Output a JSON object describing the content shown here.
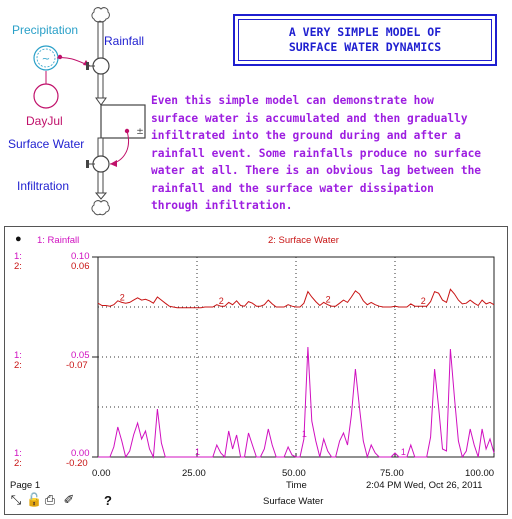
{
  "title": {
    "line1": "A VERY SIMPLE MODEL OF",
    "line2": "SURFACE WATER DYNAMICS"
  },
  "description": [
    "Even this simple model can demonstrate how",
    "surface water is accumulated and then gradually",
    "infiltrated into the ground during and after a",
    "rainfall event. Some rainfalls produce no surface",
    "water at all. There is an obvious lag between the",
    "rainfall and the surface water dissipation",
    "through infiltration."
  ],
  "diagram": {
    "precipitation": "Precipitation",
    "rainfall": "Rainfall",
    "dayjul": "DayJul",
    "surface_water": "Surface Water",
    "infiltration": "Infiltration",
    "precipitation_symbol": "~",
    "stock_symbol": "±"
  },
  "graph": {
    "legend": {
      "series1": "1: Rainfall",
      "series2": "2: Surface Water"
    },
    "axis_left": {
      "top": {
        "s1": "0.10",
        "s2": "0.06",
        "p1": "1:",
        "p2": "2:"
      },
      "mid": {
        "s1": "0.05",
        "s2": "-0.07",
        "p1": "1:",
        "p2": "2:"
      },
      "bot": {
        "s1": "0.00",
        "s2": "-0.20",
        "p1": "1:",
        "p2": "2:"
      }
    },
    "x_ticks": [
      "0.00",
      "25.00",
      "50.00",
      "75.00",
      "100.00"
    ],
    "x_label": "Time",
    "page": "Page 1",
    "timestamp": "2:04 PM   Wed, Oct 26, 2011",
    "footer_title": "Surface Water",
    "help": "?",
    "colors": {
      "rainfall": "#d010c0",
      "surface_water": "#c81414",
      "title": "#1f1fd0",
      "text": "#9d1ee0"
    }
  },
  "chart_data": {
    "type": "line",
    "x_label": "Time",
    "xlim": [
      0,
      100
    ],
    "series": [
      {
        "name": "1: Rainfall",
        "ylim": [
          0,
          0.1
        ],
        "x": [
          0,
          1,
          2,
          3,
          4,
          5,
          6,
          7,
          8,
          9,
          10,
          11,
          12,
          13,
          14,
          15,
          16,
          17,
          18,
          19,
          20,
          21,
          22,
          23,
          24,
          25,
          26,
          27,
          28,
          29,
          30,
          31,
          32,
          33,
          34,
          35,
          36,
          37,
          38,
          39,
          40,
          41,
          42,
          43,
          44,
          45,
          46,
          47,
          48,
          49,
          50,
          51,
          52,
          53,
          54,
          55,
          56,
          57,
          58,
          59,
          60,
          61,
          62,
          63,
          64,
          65,
          66,
          67,
          68,
          69,
          70,
          71,
          72,
          73,
          74,
          75,
          76,
          77,
          78,
          79,
          80,
          81,
          82,
          83,
          84,
          85,
          86,
          87,
          88,
          89,
          90,
          91,
          92,
          93,
          94,
          95,
          96,
          97,
          98,
          99,
          100
        ],
        "values": [
          0,
          0,
          0,
          0,
          0.005,
          0.015,
          0.008,
          0,
          0.003,
          0.011,
          0.017,
          0.009,
          0.013,
          0.004,
          0,
          0.024,
          0.007,
          0,
          0,
          0,
          0,
          0,
          0,
          0,
          0,
          0,
          0,
          0,
          0,
          0,
          0.006,
          0.002,
          0,
          0.013,
          0.004,
          0.011,
          0,
          0,
          0.012,
          0.006,
          0,
          0,
          0.004,
          0.014,
          0.006,
          0,
          0,
          0,
          0.005,
          0.001,
          0,
          0,
          0.009,
          0.055,
          0.018,
          0.008,
          0,
          0.009,
          0.003,
          0,
          0,
          0.008,
          0.012,
          0.006,
          0.021,
          0.044,
          0.025,
          0.008,
          0,
          0.006,
          0.002,
          0,
          0,
          0,
          0,
          0.002,
          0,
          0,
          0,
          0.006,
          0,
          0,
          0,
          0,
          0.01,
          0.044,
          0.025,
          0.004,
          0.003,
          0.054,
          0.03,
          0.008,
          0,
          0.003,
          0.014,
          0.006,
          0,
          0.014,
          0.004,
          0.009,
          0.002
        ]
      },
      {
        "name": "2: Surface Water",
        "ylim": [
          -0.2,
          0.06
        ],
        "x": [
          0,
          1,
          2,
          3,
          4,
          5,
          6,
          7,
          8,
          9,
          10,
          11,
          12,
          13,
          14,
          15,
          16,
          17,
          18,
          19,
          20,
          21,
          22,
          23,
          24,
          25,
          26,
          27,
          28,
          29,
          30,
          31,
          32,
          33,
          34,
          35,
          36,
          37,
          38,
          39,
          40,
          41,
          42,
          43,
          44,
          45,
          46,
          47,
          48,
          49,
          50,
          51,
          52,
          53,
          54,
          55,
          56,
          57,
          58,
          59,
          60,
          61,
          62,
          63,
          64,
          65,
          66,
          67,
          68,
          69,
          70,
          71,
          72,
          73,
          74,
          75,
          76,
          77,
          78,
          79,
          80,
          81,
          82,
          83,
          84,
          85,
          86,
          87,
          88,
          89,
          90,
          91,
          92,
          93,
          94,
          95,
          96,
          97,
          98,
          99,
          100
        ],
        "values": [
          0,
          -0.003,
          -0.003,
          -0.004,
          -0.002,
          0.003,
          0.001,
          0,
          0.001,
          0.004,
          0.007,
          0.004,
          0.005,
          0.003,
          0,
          0.008,
          0.004,
          0,
          -0.004,
          -0.005,
          -0.006,
          -0.006,
          -0.006,
          -0.006,
          -0.006,
          -0.006,
          -0.006,
          -0.005,
          -0.005,
          -0.005,
          -0.002,
          -0.004,
          -0.004,
          0.001,
          -0.002,
          0.003,
          -0.003,
          -0.004,
          0.002,
          0,
          -0.004,
          -0.004,
          -0.002,
          0.004,
          -0.001,
          -0.005,
          -0.005,
          -0.005,
          -0.002,
          -0.004,
          -0.005,
          -0.005,
          0,
          0.015,
          0.008,
          0.002,
          -0.003,
          0.001,
          -0.002,
          -0.004,
          -0.004,
          0,
          0.004,
          0.001,
          0.008,
          0.016,
          0.012,
          0.003,
          -0.002,
          0.001,
          -0.002,
          -0.004,
          -0.005,
          -0.005,
          -0.005,
          -0.004,
          -0.005,
          -0.005,
          -0.005,
          -0.001,
          -0.004,
          -0.004,
          -0.004,
          -0.004,
          0.002,
          0.015,
          0.013,
          0.004,
          0.001,
          0.018,
          0.012,
          0.004,
          -0.001,
          0,
          0.004,
          0,
          -0.003,
          0.004,
          -0.001,
          0.001,
          -0.002
        ]
      }
    ]
  }
}
